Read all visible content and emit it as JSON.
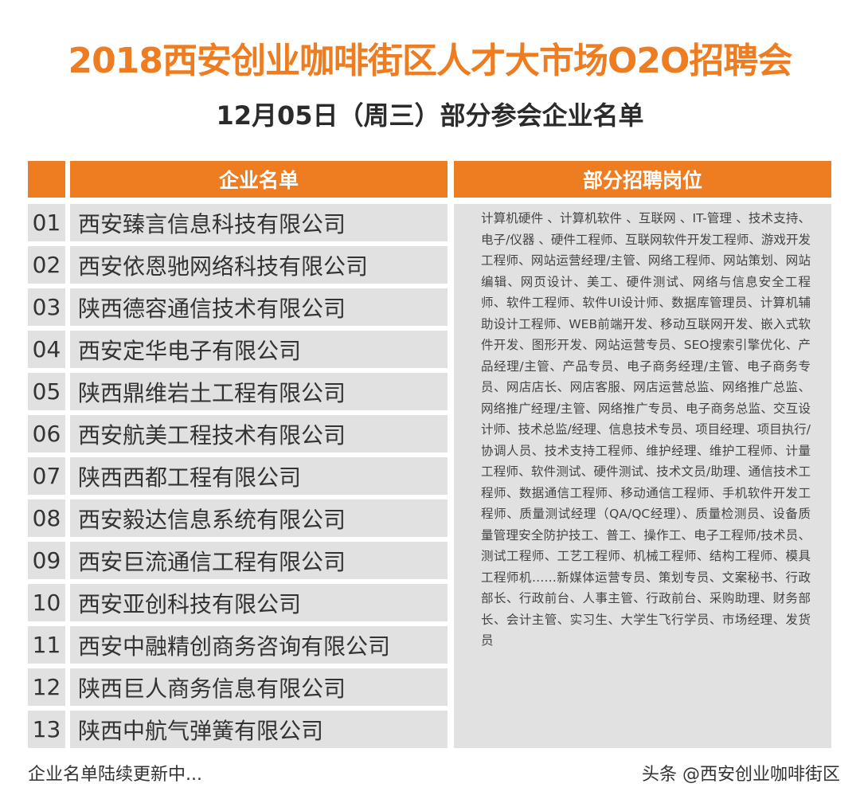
{
  "title": "2018西安创业咖啡街区人才大市场O2O招聘会",
  "subtitle": "12月05日（周三）部分参会企业名单",
  "table": {
    "header_company": "企业名单",
    "header_positions": "部分招聘岗位",
    "rows": [
      {
        "num": "01",
        "name": "西安臻言信息科技有限公司"
      },
      {
        "num": "02",
        "name": "西安依恩驰网络科技有限公司"
      },
      {
        "num": "03",
        "name": "陕西德容通信技术有限公司"
      },
      {
        "num": "04",
        "name": "西安定华电子有限公司"
      },
      {
        "num": "05",
        "name": "陕西鼎维岩土工程有限公司"
      },
      {
        "num": "06",
        "name": "西安航美工程技术有限公司"
      },
      {
        "num": "07",
        "name": "陕西西都工程有限公司"
      },
      {
        "num": "08",
        "name": "西安毅达信息系统有限公司"
      },
      {
        "num": "09",
        "name": "西安巨流通信工程有限公司"
      },
      {
        "num": "10",
        "name": "西安亚创科技有限公司"
      },
      {
        "num": "11",
        "name": "西安中融精创商务咨询有限公司"
      },
      {
        "num": "12",
        "name": "陕西巨人商务信息有限公司"
      },
      {
        "num": "13",
        "name": "陕西中航气弹簧有限公司"
      }
    ],
    "positions_text": "计算机硬件 、计算机软件 、互联网 、IT-管理 、技术支持、电子/仪器 、硬件工程师、互联网软件开发工程师、游戏开发工程师、网站运营经理/主管、网络工程师、网站策划、网站编辑、网页设计、美工、硬件测试、网络与信息安全工程师、软件工程师、软件UI设计师、数据库管理员、计算机辅助设计工程师、WEB前端开发、移动互联网开发、嵌入式软件开发、图形开发、网站运营专员、SEO搜索引擎优化、产品经理/主管、产品专员、电子商务经理/主管、电子商务专员、网店店长、网店客服、网店运营总监、网络推广总监、网络推广经理/主管、网络推广专员、电子商务总监、交互设计师、技术总监/经理、信息技术专员、项目经理、项目执行/协调人员、技术支持工程师、维护经理、维护工程师、计量工程师、软件测试、硬件测试、技术文员/助理、通信技术工程师、数据通信工程师、移动通信工程师、手机软件开发工程师、质量测试经理（QA/QC经理）、质量检测员、设备质量管理安全防护技工、普工、操作工、电子工程师/技术员、测试工程师、工艺工程师、机械工程师、结构工程师、模具工程师机……新媒体运营专员、策划专员、文案秘书、行政部长、行政前台、人事主管、行政前台、采购助理、财务部长、会计主管、实习生、大学生飞行学员、市场经理、发货员"
  },
  "footer_note": "企业名单陆续更新中...",
  "watermark": "头条 @西安创业咖啡街区",
  "colors": {
    "accent": "#ee7d22",
    "cell_bg": "#e1e1e1"
  }
}
